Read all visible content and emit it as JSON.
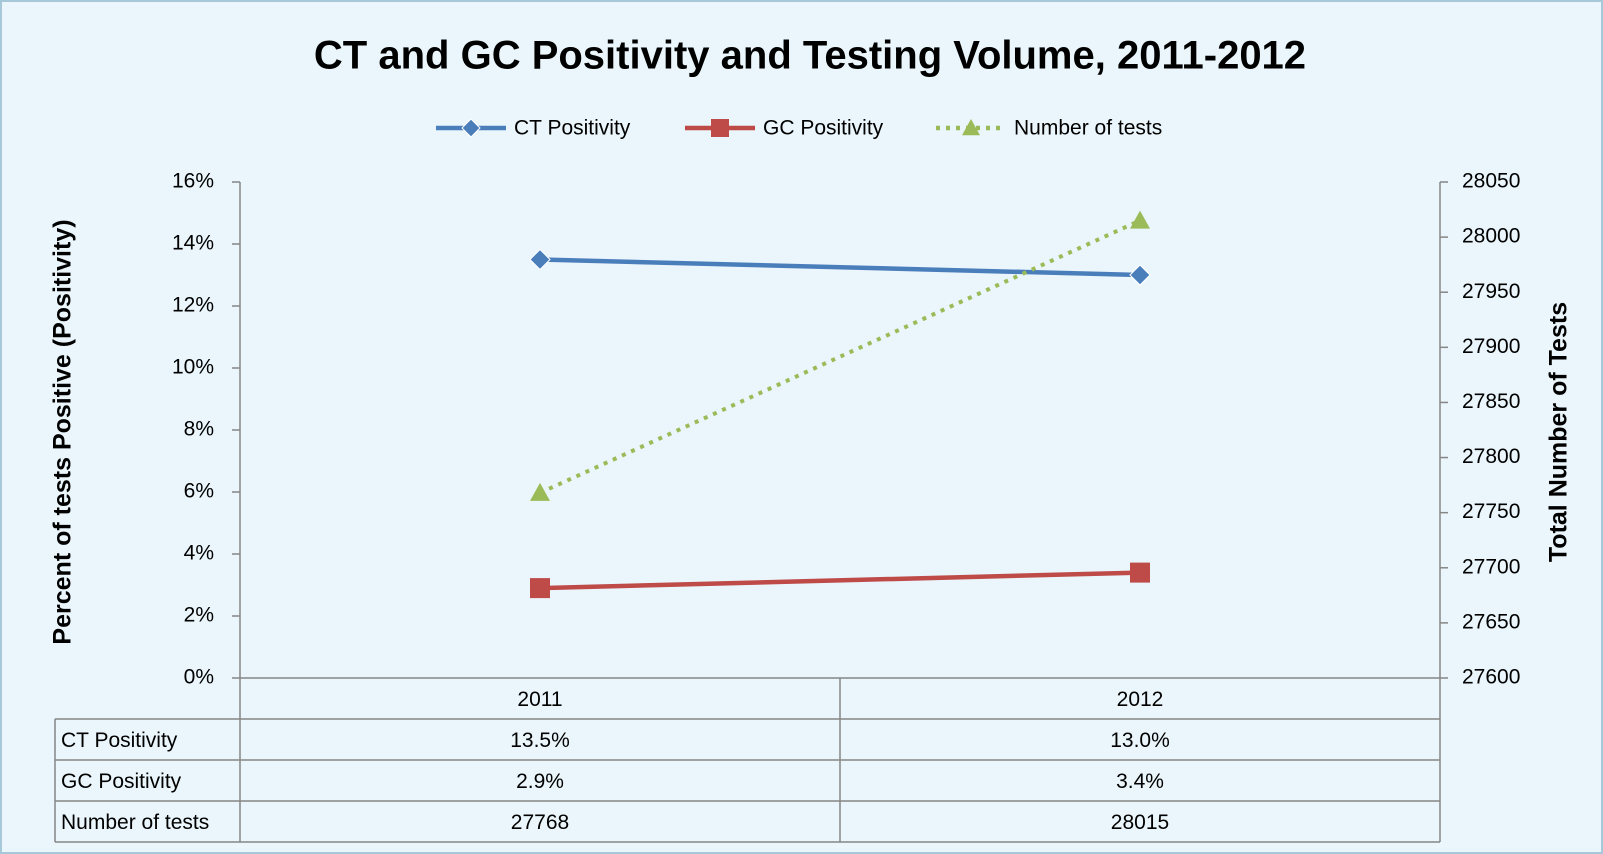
{
  "chart_data": {
    "type": "line",
    "title": "CT and GC Positivity and Testing Volume, 2011-2012",
    "categories": [
      "2011",
      "2012"
    ],
    "series": [
      {
        "name": "CT Positivity",
        "color": "#4a7ebb",
        "marker": "diamond",
        "values": [
          13.5,
          13.0
        ],
        "value_labels": [
          "13.5%",
          "13.0%"
        ]
      },
      {
        "name": "GC Positivity",
        "color": "#be4b48",
        "marker": "square",
        "values": [
          2.9,
          3.4
        ],
        "value_labels": [
          "2.9%",
          "3.4%"
        ]
      },
      {
        "name": "Number of tests",
        "color": "#9bbb59",
        "marker": "triangle",
        "dash": "dotted",
        "axis": "y2",
        "values": [
          27768,
          28015
        ]
      }
    ],
    "ylabel": "Percent of tests  Positive (Positivity)",
    "y2label": "Total Number of Tests",
    "ylim": [
      0,
      16
    ],
    "yticks": [
      {
        "value": 0,
        "label": "0%"
      },
      {
        "value": 2,
        "label": "2%"
      },
      {
        "value": 4,
        "label": "4%"
      },
      {
        "value": 6,
        "label": "6%"
      },
      {
        "value": 8,
        "label": "8%"
      },
      {
        "value": 10,
        "label": "10%"
      },
      {
        "value": 12,
        "label": "12%"
      },
      {
        "value": 14,
        "label": "14%"
      },
      {
        "value": 16,
        "label": "16%"
      }
    ],
    "y2lim": [
      27600,
      28050
    ],
    "y2ticks": [
      27600,
      27650,
      27700,
      27750,
      27800,
      27850,
      27900,
      27950,
      28000,
      28050
    ],
    "legend": "top",
    "data_table": true
  }
}
